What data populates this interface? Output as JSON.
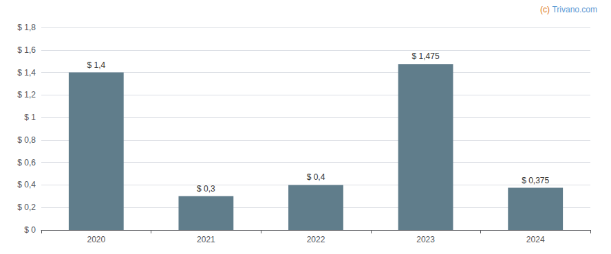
{
  "chart_data": {
    "type": "bar",
    "categories": [
      "2020",
      "2021",
      "2022",
      "2023",
      "2024"
    ],
    "values": [
      1.4,
      0.3,
      0.4,
      1.475,
      0.375
    ],
    "value_labels": [
      "$ 1,4",
      "$ 0,3",
      "$ 0,4",
      "$ 1,475",
      "$ 0,375"
    ],
    "data_labels": true,
    "color": "#607d8b",
    "ylim": [
      0,
      1.8
    ],
    "yticks": [
      {
        "value": 0,
        "label": "$ 0"
      },
      {
        "value": 0.2,
        "label": "$ 0,2"
      },
      {
        "value": 0.4,
        "label": "$ 0,4"
      },
      {
        "value": 0.6,
        "label": "$ 0,6"
      },
      {
        "value": 0.8,
        "label": "$ 0,8"
      },
      {
        "value": 1.0,
        "label": "$ 1"
      },
      {
        "value": 1.2,
        "label": "$ 1,2"
      },
      {
        "value": 1.4,
        "label": "$ 1,4"
      },
      {
        "value": 1.6,
        "label": "$ 1,6"
      },
      {
        "value": 1.8,
        "label": "$ 1,8"
      }
    ],
    "grid": true,
    "annotations": [
      {
        "text": "(c)",
        "color": "#e07b20"
      },
      {
        "text": "Trivano.com",
        "color": "#5b9bd5"
      }
    ]
  }
}
